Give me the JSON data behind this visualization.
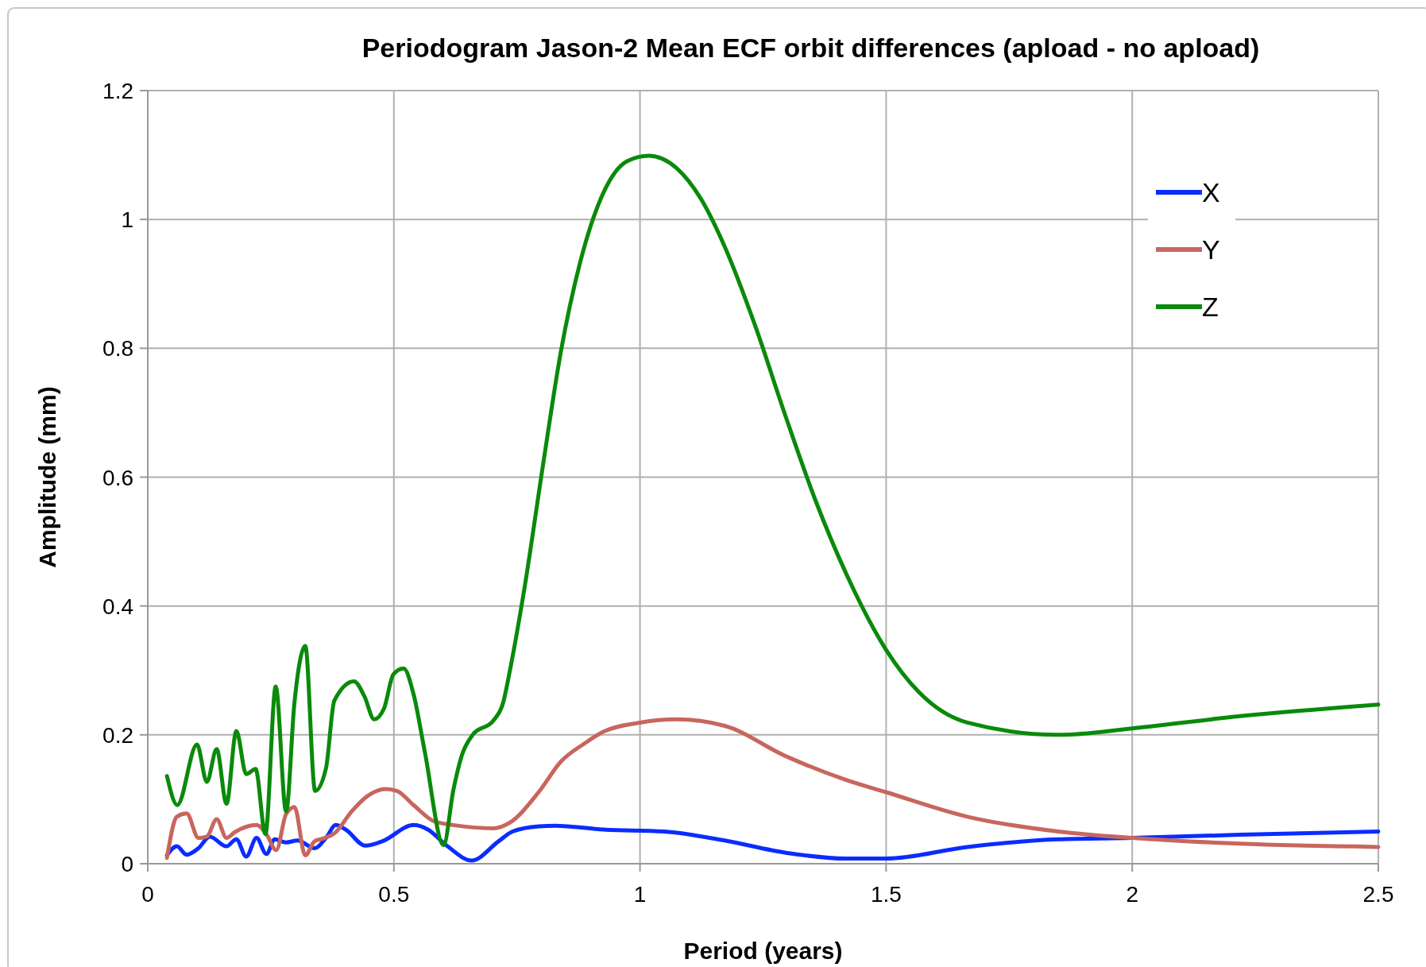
{
  "chart_data": {
    "type": "line",
    "title": "Periodogram Jason-2 Mean ECF orbit differences (apload - no apload)",
    "xlabel": "Period (years)",
    "ylabel": "Amplitude (mm)",
    "xlim": [
      0,
      2.5
    ],
    "xticks": [
      0,
      0.5,
      1,
      1.5,
      2,
      2.5
    ],
    "ylim": [
      0,
      1.2
    ],
    "yticks": [
      0,
      0.2,
      0.4,
      0.6,
      0.8,
      1,
      1.2
    ],
    "grid": true,
    "legend": "top right",
    "line_style": "solid",
    "marker": "none",
    "series": [
      {
        "name": "X",
        "color": "#0a2cff",
        "x": [
          0.039,
          0.059,
          0.079,
          0.103,
          0.126,
          0.16,
          0.18,
          0.2,
          0.221,
          0.241,
          0.258,
          0.281,
          0.304,
          0.339,
          0.362,
          0.382,
          0.402,
          0.442,
          0.477,
          0.54,
          0.569,
          0.609,
          0.658,
          0.713,
          0.741,
          0.794,
          0.828,
          0.926,
          1.049,
          1.172,
          1.296,
          1.419,
          1.5,
          1.665,
          1.85,
          2.0,
          2.219,
          2.5
        ],
        "values": [
          0.013,
          0.027,
          0.014,
          0.024,
          0.042,
          0.027,
          0.038,
          0.011,
          0.04,
          0.015,
          0.038,
          0.033,
          0.036,
          0.024,
          0.04,
          0.06,
          0.053,
          0.028,
          0.035,
          0.06,
          0.053,
          0.027,
          0.005,
          0.035,
          0.05,
          0.058,
          0.059,
          0.053,
          0.05,
          0.036,
          0.017,
          0.008,
          0.008,
          0.026,
          0.038,
          0.04,
          0.045,
          0.05
        ]
      },
      {
        "name": "Y",
        "color": "#c8665e",
        "x": [
          0.039,
          0.059,
          0.079,
          0.103,
          0.12,
          0.14,
          0.16,
          0.177,
          0.221,
          0.241,
          0.261,
          0.281,
          0.298,
          0.32,
          0.339,
          0.356,
          0.382,
          0.413,
          0.448,
          0.483,
          0.506,
          0.54,
          0.581,
          0.621,
          0.702,
          0.736,
          0.794,
          0.84,
          0.886,
          0.926,
          1.0,
          1.074,
          1.172,
          1.296,
          1.419,
          1.5,
          1.665,
          1.85,
          2.0,
          2.219,
          2.5
        ],
        "values": [
          0.009,
          0.073,
          0.078,
          0.04,
          0.042,
          0.069,
          0.04,
          0.049,
          0.06,
          0.046,
          0.021,
          0.077,
          0.088,
          0.013,
          0.035,
          0.039,
          0.049,
          0.08,
          0.106,
          0.116,
          0.113,
          0.091,
          0.066,
          0.06,
          0.055,
          0.064,
          0.111,
          0.159,
          0.186,
          0.205,
          0.219,
          0.224,
          0.214,
          0.167,
          0.13,
          0.111,
          0.073,
          0.05,
          0.04,
          0.031,
          0.026
        ]
      },
      {
        "name": "Z",
        "color": "#0a8a0a",
        "x": [
          0.039,
          0.06,
          0.1,
          0.12,
          0.14,
          0.16,
          0.18,
          0.2,
          0.219,
          0.239,
          0.26,
          0.281,
          0.298,
          0.32,
          0.34,
          0.362,
          0.379,
          0.419,
          0.44,
          0.46,
          0.48,
          0.499,
          0.52,
          0.54,
          0.563,
          0.601,
          0.621,
          0.638,
          0.661,
          0.702,
          0.722,
          0.736,
          0.766,
          0.803,
          0.84,
          0.877,
          0.926,
          0.975,
          1.018,
          1.074,
          1.123,
          1.172,
          1.234,
          1.296,
          1.357,
          1.419,
          1.5,
          1.567,
          1.665,
          1.85,
          2.0,
          2.219,
          2.5
        ],
        "values": [
          0.136,
          0.091,
          0.185,
          0.127,
          0.178,
          0.093,
          0.206,
          0.139,
          0.147,
          0.046,
          0.275,
          0.081,
          0.25,
          0.338,
          0.113,
          0.148,
          0.253,
          0.283,
          0.26,
          0.224,
          0.241,
          0.294,
          0.303,
          0.263,
          0.173,
          0.029,
          0.115,
          0.168,
          0.201,
          0.222,
          0.25,
          0.301,
          0.431,
          0.619,
          0.798,
          0.929,
          1.042,
          1.091,
          1.099,
          1.08,
          1.033,
          0.958,
          0.835,
          0.694,
          0.563,
          0.45,
          0.332,
          0.266,
          0.219,
          0.2,
          0.21,
          0.229,
          0.247
        ]
      }
    ]
  }
}
